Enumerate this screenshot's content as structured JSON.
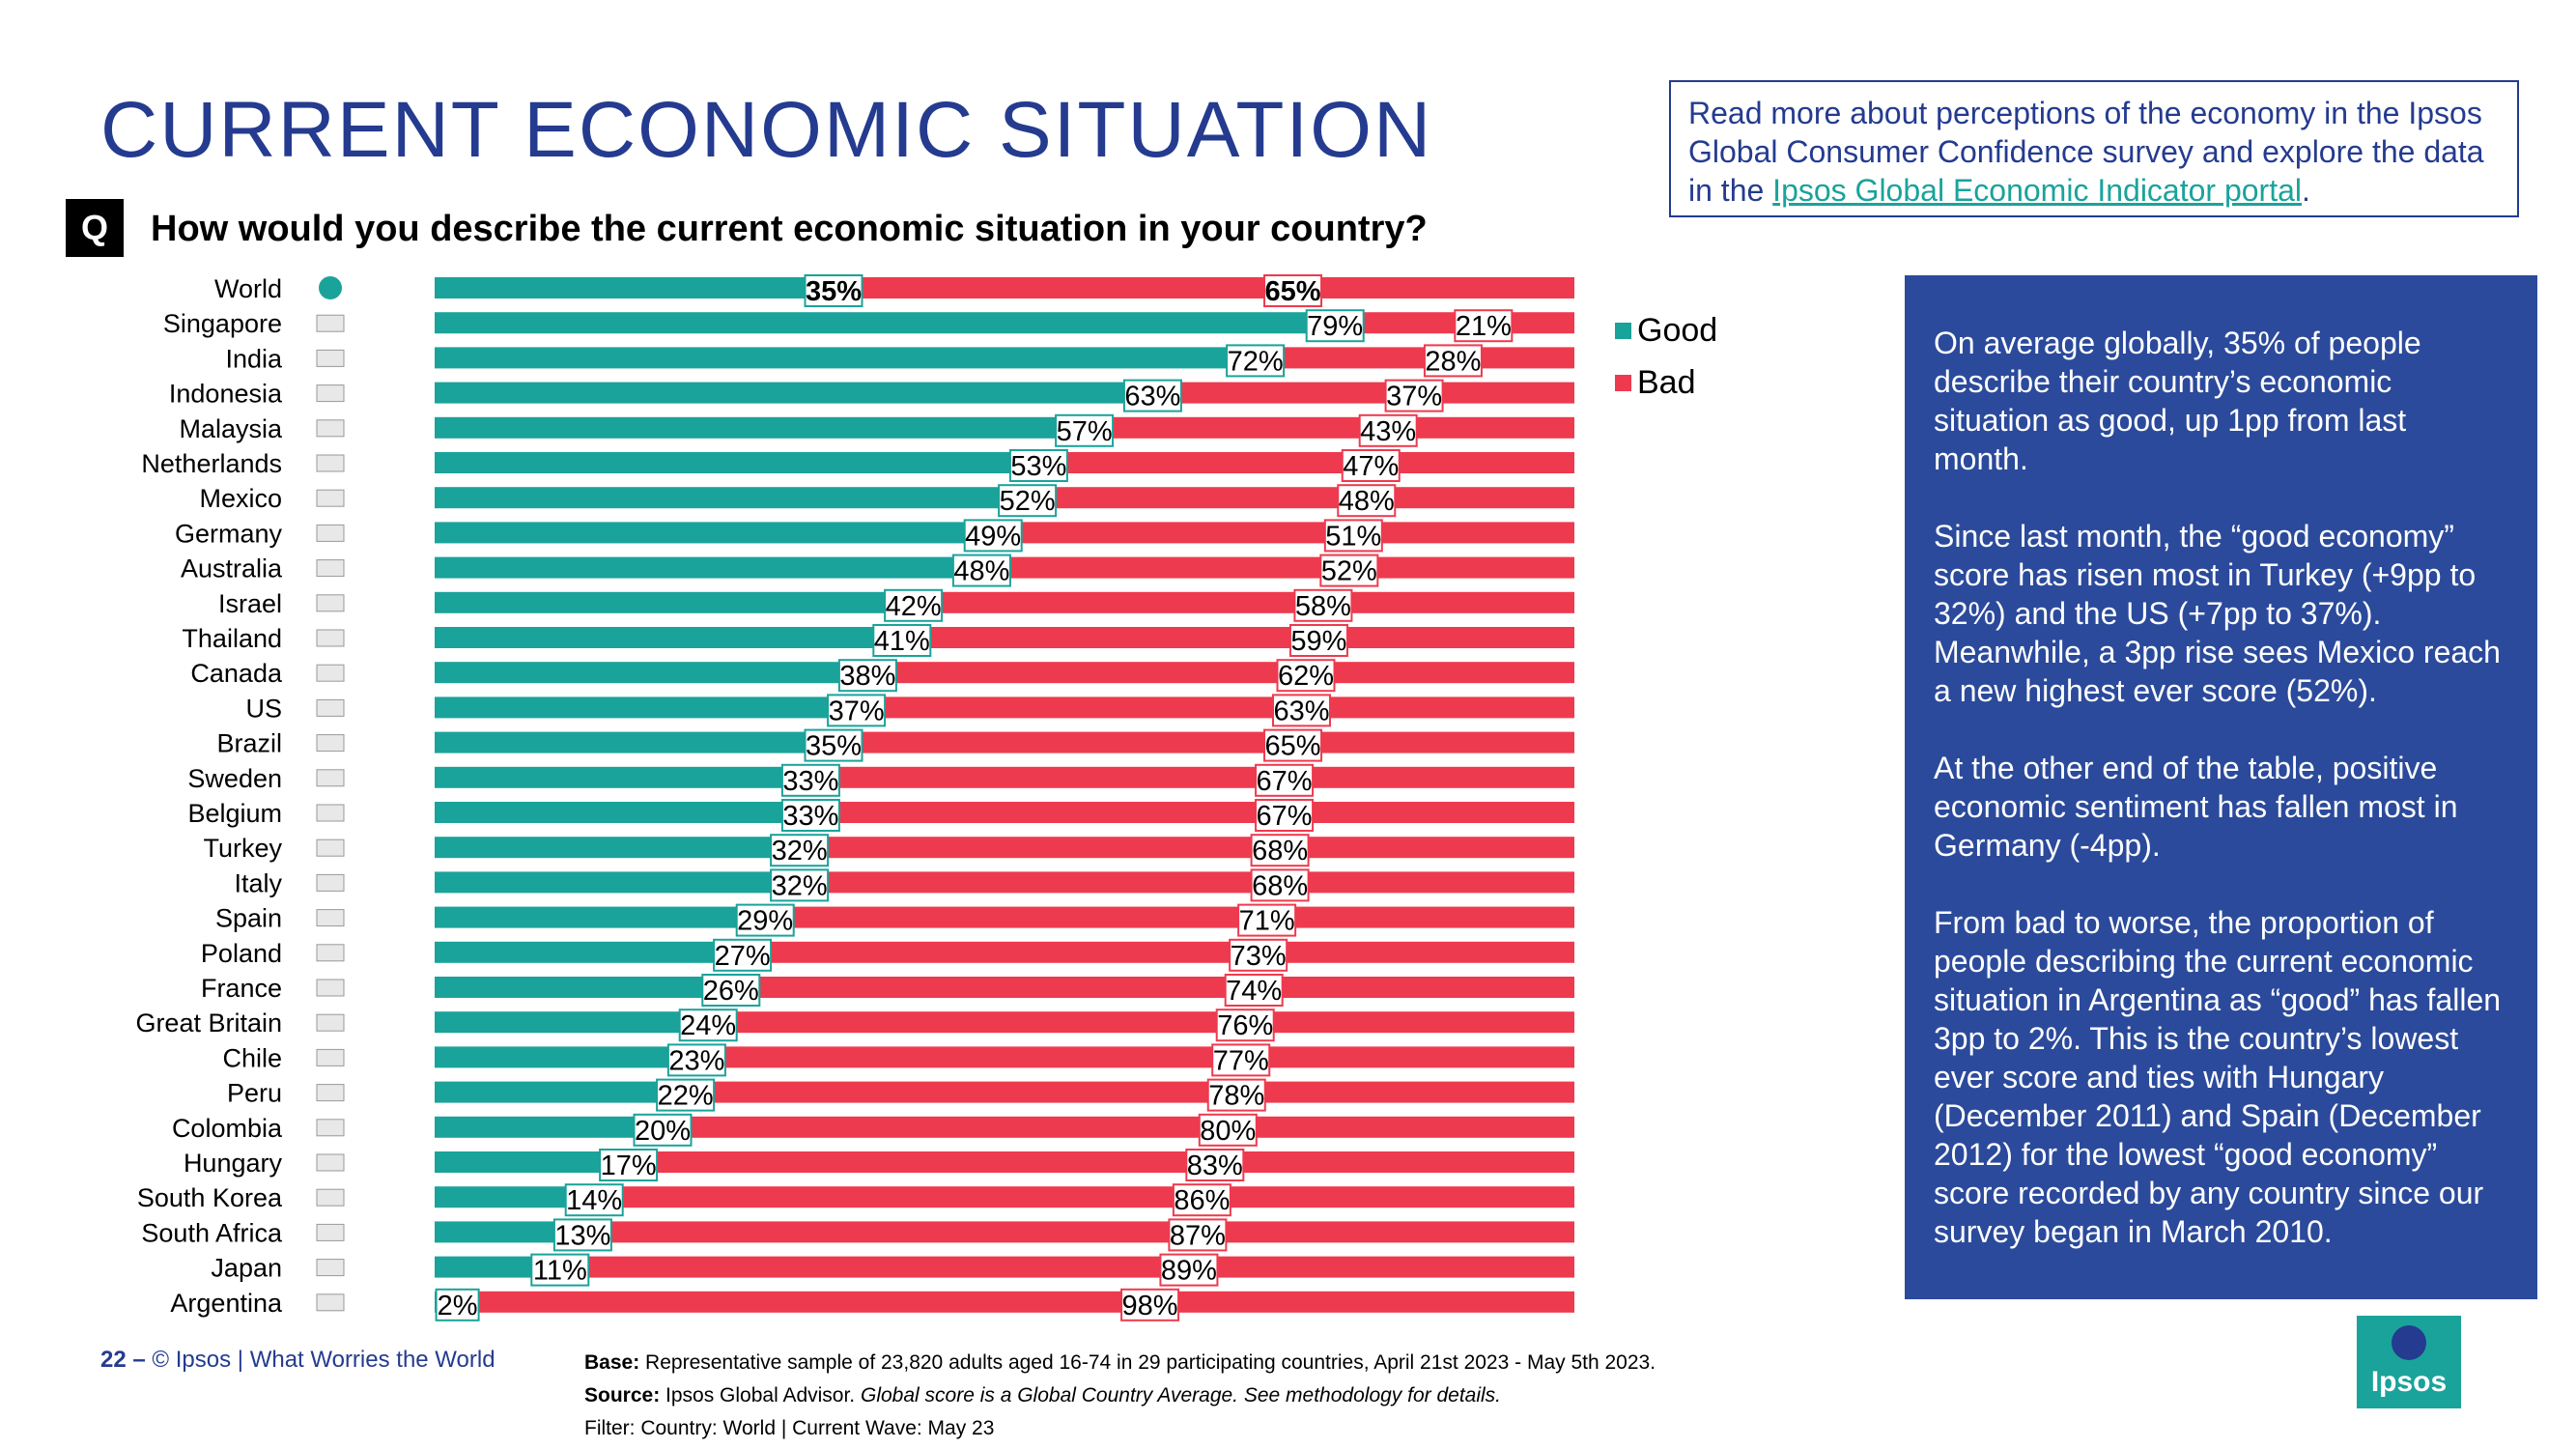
{
  "header": {
    "title": "CURRENT ECONOMIC SITUATION",
    "q_badge": "Q",
    "question": "How would you describe the current economic situation in your country?"
  },
  "read_more": {
    "text_before": "Read more about perceptions of the economy in the Ipsos Global Consumer Confidence survey and explore the data in the ",
    "link_text": "Ipsos Global Economic Indicator portal",
    "text_after": "."
  },
  "summary": {
    "paragraphs": [
      "On average globally, 35% of people describe their country’s economic situation as good, up 1pp from last month.",
      "Since last month, the “good economy” score has risen most in Turkey (+9pp to 32%) and the US (+7pp to 37%). Meanwhile, a 3pp rise sees Mexico reach a new highest ever score (52%).",
      "At the other end of the table, positive economic sentiment has fallen most in Germany (-4pp).",
      "From bad to worse, the proportion of people describing the current economic situation in Argentina as “good” has fallen 3pp to 2%. This is the country’s lowest ever score and ties with Hungary (December 2011) and Spain (December 2012) for the lowest “good economy” score recorded by any country since our survey began in March 2010."
    ]
  },
  "colors": {
    "good": "#1AA39A",
    "bad": "#EE3A4E",
    "title": "#243B8F",
    "panel": "#2B4A9B"
  },
  "chart_data": {
    "type": "bar",
    "orientation": "horizontal",
    "stacked": true,
    "value_unit": "%",
    "categories": [
      "World",
      "Singapore",
      "India",
      "Indonesia",
      "Malaysia",
      "Netherlands",
      "Mexico",
      "Germany",
      "Australia",
      "Israel",
      "Thailand",
      "Canada",
      "US",
      "Brazil",
      "Sweden",
      "Belgium",
      "Turkey",
      "Italy",
      "Spain",
      "Poland",
      "France",
      "Great Britain",
      "Chile",
      "Peru",
      "Colombia",
      "Hungary",
      "South Korea",
      "South Africa",
      "Japan",
      "Argentina"
    ],
    "series": [
      {
        "name": "Good",
        "color": "#1AA39A",
        "values": [
          35,
          79,
          72,
          63,
          57,
          53,
          52,
          49,
          48,
          42,
          41,
          38,
          37,
          35,
          33,
          33,
          32,
          32,
          29,
          27,
          26,
          24,
          23,
          22,
          20,
          17,
          14,
          13,
          11,
          2
        ]
      },
      {
        "name": "Bad",
        "color": "#EE3A4E",
        "values": [
          65,
          21,
          28,
          37,
          43,
          47,
          48,
          51,
          52,
          58,
          59,
          62,
          63,
          65,
          67,
          67,
          68,
          68,
          71,
          73,
          74,
          76,
          77,
          78,
          80,
          83,
          86,
          87,
          89,
          98
        ]
      }
    ],
    "highlight_category": "World",
    "xlim": [
      0,
      100
    ],
    "legend_position": "right",
    "grid": false
  },
  "footer": {
    "page": "22",
    "dash": "–",
    "copyright": "© Ipsos | What Worries the World",
    "base_label": "Base:",
    "base_text": "Representative sample of 23,820 adults aged 16-74 in 29 participating countries, April 21st 2023 - May 5th 2023.",
    "source_label": "Source:",
    "source_text": "Ipsos Global Advisor.",
    "source_note": "Global score is a Global Country Average. See methodology for details.",
    "filter_text": "Filter: Country: World | Current Wave: May 23"
  },
  "logo": {
    "text": "Ipsos"
  }
}
